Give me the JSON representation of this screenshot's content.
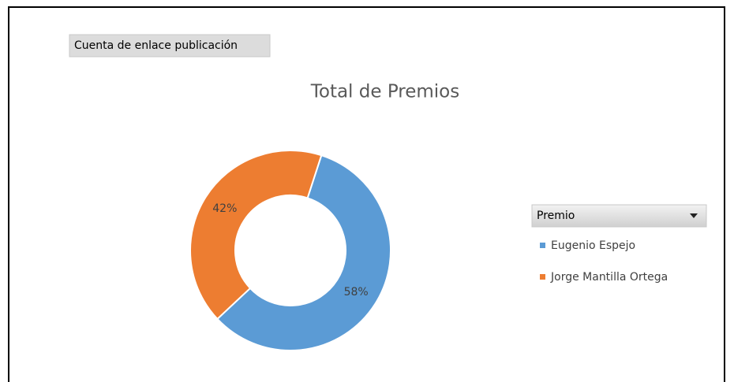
{
  "chart_data": {
    "type": "doughnut",
    "title": "Total de Premios",
    "field_button": "Cuenta de enlace publicación",
    "legend_title": "Premio",
    "categories": [
      "Eugenio Espejo",
      "Jorge Mantilla Ortega"
    ],
    "values": [
      58,
      42
    ],
    "value_labels": [
      "58%",
      "42%"
    ],
    "colors": [
      "#5b9bd5",
      "#ed7d31"
    ]
  }
}
